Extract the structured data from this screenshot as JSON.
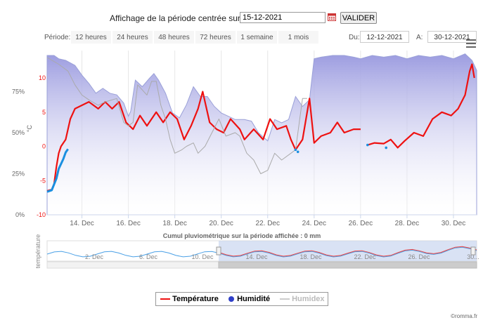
{
  "header": {
    "label": "Affichage de la période centrée sur le",
    "date_value": "15-12-2021",
    "validate_label": "VALIDER",
    "calendar_icon": "calendar-icon"
  },
  "period": {
    "label": "Période:",
    "buttons": [
      "12 heures",
      "24 heures",
      "48 heures",
      "72 heures",
      "1 semaine",
      "1 mois"
    ],
    "from_label": "Du:",
    "from_value": "12-12-2021",
    "to_label": "A:",
    "to_value": "30-12-2021"
  },
  "colors": {
    "temperature": "#ee1111",
    "humidity_line": "#1a8fe0",
    "humidity_marker": "#2f3fc8",
    "humidex": "#aaaaaa",
    "area_top": "#9c9ce0"
  },
  "chart_data": {
    "type": "line",
    "x_range": [
      "2021-12-12T12:00",
      "2021-12-31T00:00"
    ],
    "x_ticks": [
      "14. Dec",
      "16. Dec",
      "18. Dec",
      "20. Dec",
      "22. Dec",
      "24. Dec",
      "26. Dec",
      "28. Dec",
      "30. Dec"
    ],
    "y_left": {
      "label": "",
      "ticks": [
        "0%",
        "25%",
        "50%",
        "75%"
      ],
      "range": [
        0,
        100
      ]
    },
    "y_right": {
      "label": "°C",
      "ticks": [
        "-10",
        "-5",
        "0",
        "5",
        "10"
      ],
      "range": [
        -10,
        14
      ]
    },
    "grid": "vertical",
    "legend": "bottom-center",
    "series": [
      {
        "name": "Température",
        "unit": "°C",
        "points": [
          [
            12.5,
            -6.5
          ],
          [
            12.7,
            -6.3
          ],
          [
            12.8,
            -5.5
          ],
          [
            12.9,
            -3
          ],
          [
            13.0,
            -1
          ],
          [
            13.1,
            0
          ],
          [
            13.3,
            1
          ],
          [
            13.5,
            4
          ],
          [
            13.7,
            5.5
          ],
          [
            14.0,
            6
          ],
          [
            14.3,
            6.5
          ],
          [
            14.7,
            5.5
          ],
          [
            15.0,
            6.5
          ],
          [
            15.3,
            5.5
          ],
          [
            15.6,
            6.5
          ],
          [
            15.9,
            3.5
          ],
          [
            16.2,
            2.5
          ],
          [
            16.5,
            4.5
          ],
          [
            16.8,
            3
          ],
          [
            17.2,
            5
          ],
          [
            17.5,
            3.5
          ],
          [
            17.8,
            5
          ],
          [
            18.1,
            4
          ],
          [
            18.4,
            1
          ],
          [
            18.7,
            3
          ],
          [
            19.0,
            5.5
          ],
          [
            19.2,
            8
          ],
          [
            19.5,
            3.5
          ],
          [
            19.8,
            2.5
          ],
          [
            20.1,
            2
          ],
          [
            20.4,
            4
          ],
          [
            20.8,
            2.5
          ],
          [
            21.0,
            1
          ],
          [
            21.4,
            2.5
          ],
          [
            21.8,
            1
          ],
          [
            22.1,
            4
          ],
          [
            22.4,
            2.5
          ],
          [
            22.8,
            3
          ],
          [
            23.0,
            1
          ],
          [
            23.2,
            -0.5
          ],
          [
            23.5,
            1
          ],
          [
            23.8,
            7
          ],
          [
            24.0,
            0.5
          ],
          [
            24.3,
            1.5
          ],
          [
            24.7,
            2
          ],
          [
            25.0,
            3.5
          ],
          [
            25.3,
            2
          ],
          [
            25.7,
            2.5
          ],
          [
            26.0,
            2.5
          ]
        ]
      },
      {
        "name": "Température",
        "unit": "°C",
        "points": [
          [
            26.3,
            0.2
          ],
          [
            26.6,
            0.5
          ],
          [
            27.0,
            0.4
          ],
          [
            27.3,
            1
          ],
          [
            27.6,
            -0.2
          ],
          [
            27.9,
            0.8
          ],
          [
            28.3,
            2
          ],
          [
            28.7,
            1.5
          ],
          [
            29.1,
            4
          ],
          [
            29.5,
            5
          ],
          [
            29.9,
            4.5
          ],
          [
            30.2,
            5.5
          ],
          [
            30.5,
            7.5
          ],
          [
            30.7,
            11
          ],
          [
            30.8,
            12
          ],
          [
            30.9,
            10
          ]
        ]
      },
      {
        "name": "Humidité",
        "unit": "%",
        "points": [
          [
            12.5,
            14
          ],
          [
            12.7,
            15
          ],
          [
            12.9,
            22
          ],
          [
            13.0,
            28
          ],
          [
            13.1,
            31
          ],
          [
            13.2,
            34
          ],
          [
            13.3,
            38
          ],
          [
            13.4,
            40
          ]
        ]
      },
      {
        "name": "Humidex",
        "unit": "°C",
        "points": [
          [
            12.5,
            13
          ],
          [
            13.0,
            12
          ],
          [
            13.4,
            11
          ],
          [
            13.7,
            9
          ],
          [
            14.0,
            7.5
          ],
          [
            14.3,
            6.8
          ],
          [
            14.7,
            6
          ],
          [
            15.0,
            6.5
          ],
          [
            15.5,
            7
          ],
          [
            15.8,
            3.5
          ],
          [
            16.0,
            3
          ],
          [
            16.2,
            3.5
          ],
          [
            16.4,
            9
          ],
          [
            16.8,
            7.5
          ],
          [
            17.0,
            9.5
          ],
          [
            17.2,
            9.5
          ],
          [
            17.4,
            6
          ],
          [
            17.6,
            4
          ],
          [
            17.8,
            1
          ],
          [
            18.0,
            -1
          ],
          [
            18.3,
            -0.5
          ],
          [
            18.5,
            0
          ],
          [
            18.8,
            0.5
          ],
          [
            19.0,
            -1
          ],
          [
            19.3,
            0
          ],
          [
            19.6,
            2
          ],
          [
            19.9,
            4
          ],
          [
            20.2,
            1.5
          ],
          [
            20.6,
            2
          ],
          [
            20.8,
            1.5
          ],
          [
            21.1,
            -1
          ],
          [
            21.4,
            -2
          ],
          [
            21.7,
            -4
          ],
          [
            22.0,
            -3.5
          ],
          [
            22.3,
            -1
          ],
          [
            22.6,
            -2
          ],
          [
            23.0,
            -1
          ],
          [
            23.2,
            -0.5
          ],
          [
            23.5,
            7
          ],
          [
            23.7,
            7
          ]
        ]
      }
    ]
  },
  "navigator": {
    "axis_label": "température",
    "title": "Cumul pluviométrique sur la période affichée : 0 mm",
    "ticks": [
      "2. Dec",
      "6. Dec",
      "10. Dec",
      "14. Dec",
      "18. Dec",
      "22. Dec",
      "26. Dec",
      "30..."
    ]
  },
  "legend": {
    "items": [
      {
        "label": "Température"
      },
      {
        "label": "Humidité"
      },
      {
        "label": "Humidex"
      }
    ]
  },
  "footer": {
    "credit": "©romma.fr"
  }
}
